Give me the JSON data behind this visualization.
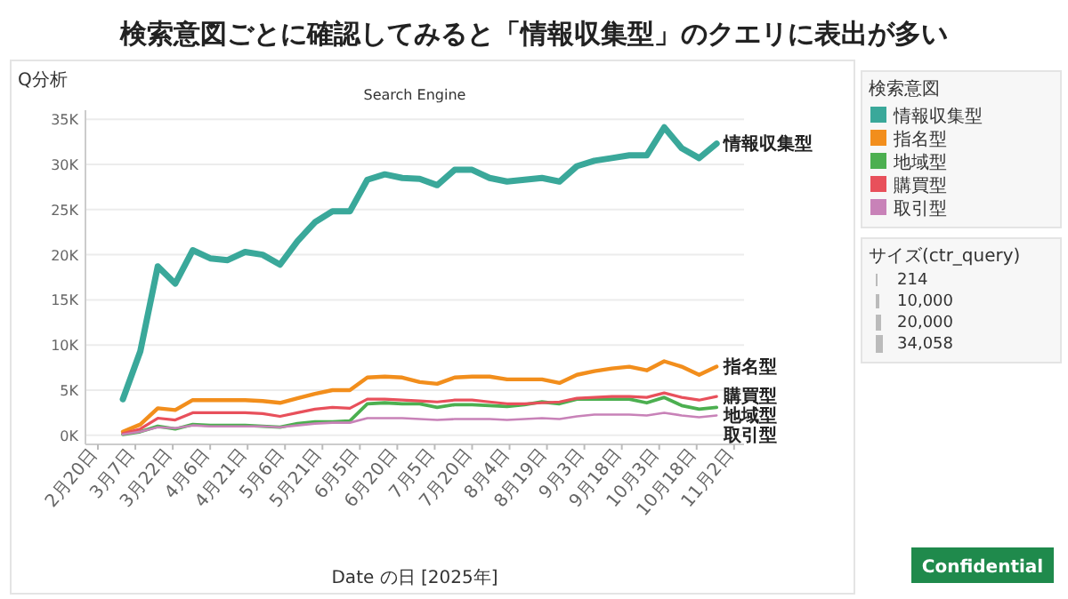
{
  "chart_data": {
    "type": "line",
    "title": "検索意図ごとに確認してみると「情報収集型」のクエリに表出が多い",
    "subtitle": "Search Engine",
    "xlabel": "Date の日 [2025年]",
    "legend_title": "検索意図",
    "annotations": [
      "Q分析",
      "サイズ(ctr_query)",
      "214",
      "10,000",
      "20,000",
      "34,058",
      "Confidential"
    ],
    "x": [
      "2025-03-02",
      "2025-03-09",
      "2025-03-16",
      "2025-03-23",
      "2025-03-30",
      "2025-04-06",
      "2025-04-13",
      "2025-04-20",
      "2025-04-27",
      "2025-05-04",
      "2025-05-11",
      "2025-05-18",
      "2025-05-25",
      "2025-06-01",
      "2025-06-08",
      "2025-06-15",
      "2025-06-22",
      "2025-06-29",
      "2025-07-06",
      "2025-07-13",
      "2025-07-20",
      "2025-07-27",
      "2025-08-03",
      "2025-08-10",
      "2025-08-17",
      "2025-08-24",
      "2025-08-31",
      "2025-09-07",
      "2025-09-14",
      "2025-09-21",
      "2025-09-28",
      "2025-10-05",
      "2025-10-12",
      "2025-10-19",
      "2025-10-26"
    ],
    "series": [
      {
        "name": "情報収集型",
        "color": "#3aa89a",
        "values": [
          4.0,
          9.3,
          18.7,
          16.8,
          20.5,
          19.6,
          19.4,
          20.3,
          20.0,
          18.9,
          21.5,
          23.6,
          24.8,
          24.8,
          28.3,
          28.9,
          28.5,
          28.4,
          27.7,
          29.4,
          29.4,
          28.5,
          28.1,
          28.3,
          28.5,
          28.1,
          29.8,
          30.4,
          30.7,
          31.0,
          31.0,
          34.1,
          31.8,
          30.7,
          32.3
        ]
      },
      {
        "name": "指名型",
        "color": "#f28e1c",
        "values": [
          0.4,
          1.2,
          3.0,
          2.8,
          3.9,
          3.9,
          3.9,
          3.9,
          3.8,
          3.6,
          4.1,
          4.6,
          5.0,
          5.0,
          6.4,
          6.5,
          6.4,
          5.9,
          5.7,
          6.4,
          6.5,
          6.5,
          6.2,
          6.2,
          6.2,
          5.8,
          6.7,
          7.1,
          7.4,
          7.6,
          7.2,
          8.2,
          7.6,
          6.7,
          7.6
        ]
      },
      {
        "name": "地域型",
        "color": "#4caf50",
        "values": [
          0.1,
          0.4,
          1.0,
          0.7,
          1.2,
          1.1,
          1.1,
          1.1,
          1.0,
          0.9,
          1.3,
          1.5,
          1.5,
          1.6,
          3.5,
          3.6,
          3.5,
          3.5,
          3.1,
          3.4,
          3.4,
          3.3,
          3.2,
          3.4,
          3.7,
          3.5,
          4.0,
          4.0,
          4.0,
          4.0,
          3.6,
          4.2,
          3.3,
          2.9,
          3.1
        ]
      },
      {
        "name": "購買型",
        "color": "#e8505b",
        "values": [
          0.2,
          0.7,
          1.9,
          1.7,
          2.5,
          2.5,
          2.5,
          2.5,
          2.4,
          2.1,
          2.5,
          2.9,
          3.1,
          3.0,
          4.0,
          4.0,
          3.9,
          3.8,
          3.7,
          3.9,
          3.9,
          3.7,
          3.5,
          3.5,
          3.6,
          3.7,
          4.1,
          4.2,
          4.3,
          4.3,
          4.2,
          4.7,
          4.2,
          3.9,
          4.3
        ]
      },
      {
        "name": "取引型",
        "color": "#c882b8",
        "values": [
          0.1,
          0.4,
          0.9,
          0.8,
          1.1,
          1.0,
          1.0,
          1.0,
          1.0,
          0.9,
          1.1,
          1.3,
          1.4,
          1.4,
          1.9,
          1.9,
          1.9,
          1.8,
          1.7,
          1.8,
          1.8,
          1.8,
          1.7,
          1.8,
          1.9,
          1.8,
          2.1,
          2.3,
          2.3,
          2.3,
          2.2,
          2.5,
          2.2,
          2.0,
          2.2
        ]
      }
    ],
    "xlim": [
      "2025-02-15",
      "2025-11-06"
    ],
    "xticks": [
      {
        "value": "2025-02-20",
        "label": "2月20日"
      },
      {
        "value": "2025-03-07",
        "label": "3月7日"
      },
      {
        "value": "2025-03-22",
        "label": "3月22日"
      },
      {
        "value": "2025-04-06",
        "label": "4月6日"
      },
      {
        "value": "2025-04-21",
        "label": "4月21日"
      },
      {
        "value": "2025-05-06",
        "label": "5月6日"
      },
      {
        "value": "2025-05-21",
        "label": "5月21日"
      },
      {
        "value": "2025-06-05",
        "label": "6月5日"
      },
      {
        "value": "2025-06-20",
        "label": "6月20日"
      },
      {
        "value": "2025-07-05",
        "label": "7月5日"
      },
      {
        "value": "2025-07-20",
        "label": "7月20日"
      },
      {
        "value": "2025-08-04",
        "label": "8月4日"
      },
      {
        "value": "2025-08-19",
        "label": "8月19日"
      },
      {
        "value": "2025-09-03",
        "label": "9月3日"
      },
      {
        "value": "2025-09-18",
        "label": "9月18日"
      },
      {
        "value": "2025-10-03",
        "label": "10月3日"
      },
      {
        "value": "2025-10-18",
        "label": "10月18日"
      },
      {
        "value": "2025-11-02",
        "label": "11月2日"
      }
    ],
    "ylim": [
      -1,
      36
    ],
    "yticks": [
      {
        "value": 0,
        "label": "0K"
      },
      {
        "value": 5,
        "label": "5K"
      },
      {
        "value": 10,
        "label": "10K"
      },
      {
        "value": 15,
        "label": "15K"
      },
      {
        "value": 20,
        "label": "20K"
      },
      {
        "value": 25,
        "label": "25K"
      },
      {
        "value": 30,
        "label": "30K"
      },
      {
        "value": 35,
        "label": "35K"
      }
    ],
    "grid": "y",
    "legend": "right"
  }
}
